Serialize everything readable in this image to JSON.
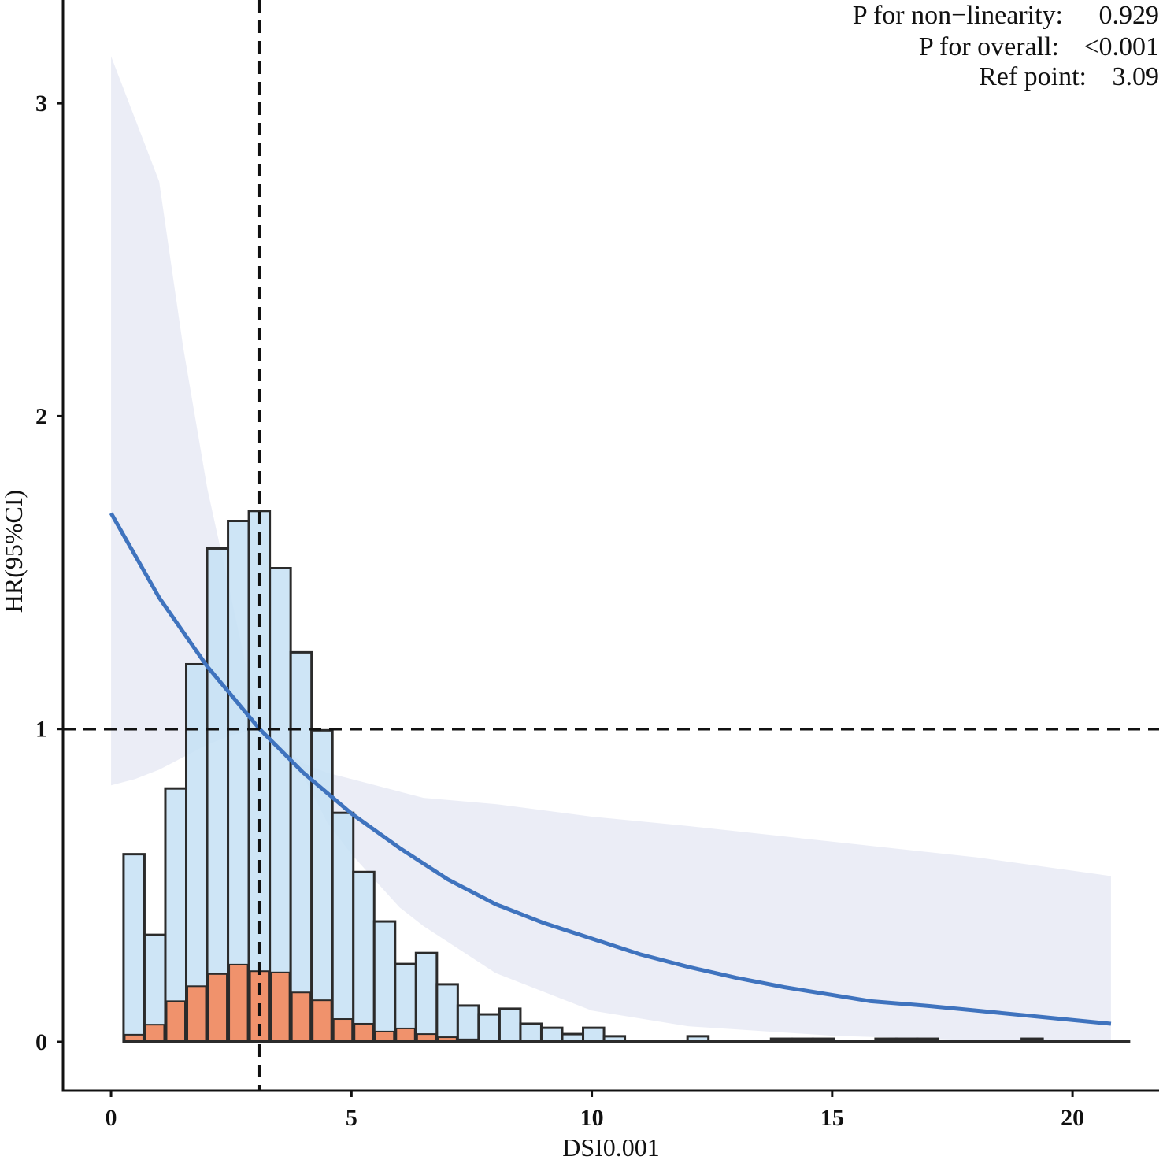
{
  "chart_data": {
    "type": "line",
    "title": "",
    "xlabel": "DSI0.001",
    "ylabel": "HR(95%CI)",
    "xlim": [
      -1.0,
      21.8
    ],
    "ylim": [
      -0.156,
      3.33
    ],
    "xticks": [
      0,
      5,
      10,
      15,
      20
    ],
    "yticks": [
      0,
      1,
      2,
      3
    ],
    "grid": false,
    "annotations": [
      {
        "label": "P for non−linearity:",
        "value": "0.929"
      },
      {
        "label": "P for overall:",
        "value": "<0.001"
      },
      {
        "label": "Ref point:",
        "value": "3.09"
      }
    ],
    "ref_x": 3.09,
    "ref_y": 1,
    "curve": {
      "name": "HR",
      "x": [
        0,
        1,
        2,
        3.09,
        4,
        5,
        6,
        7,
        8,
        9,
        10,
        11,
        12,
        13,
        14,
        15,
        15.8,
        17,
        18,
        19,
        20,
        20.8
      ],
      "y": [
        1.69,
        1.42,
        1.2,
        1.0,
        0.86,
        0.73,
        0.62,
        0.52,
        0.44,
        0.38,
        0.33,
        0.28,
        0.24,
        0.205,
        0.175,
        0.15,
        0.13,
        0.115,
        0.1,
        0.085,
        0.07,
        0.058
      ],
      "color": "#3f73be"
    },
    "ci": {
      "x": [
        0,
        0.5,
        1,
        1.5,
        2,
        2.5,
        3.09,
        4,
        4.5,
        5,
        6,
        6.5,
        8,
        10,
        12,
        15,
        18,
        20.8
      ],
      "upper": [
        3.15,
        2.95,
        2.75,
        2.22,
        1.77,
        1.42,
        1.0,
        0.89,
        0.86,
        0.84,
        0.8,
        0.78,
        0.76,
        0.72,
        0.69,
        0.64,
        0.59,
        0.53
      ],
      "lower": [
        0.82,
        0.84,
        0.87,
        0.91,
        0.95,
        0.98,
        1.0,
        0.85,
        0.7,
        0.6,
        0.43,
        0.37,
        0.22,
        0.1,
        0.05,
        0.02,
        0.005,
        0.0
      ],
      "color": "#e7eaf5"
    },
    "histogram": {
      "bin_start": 0.26,
      "bin_width": 0.4345,
      "axis_end": 21.2,
      "total": [
        0.6,
        0.342,
        0.81,
        1.207,
        1.577,
        1.665,
        1.697,
        1.514,
        1.245,
        0.996,
        0.732,
        0.543,
        0.385,
        0.249,
        0.284,
        0.184,
        0.116,
        0.088,
        0.106,
        0.058,
        0.045,
        0.025,
        0.045,
        0.018,
        0.003,
        0.003,
        0.003,
        0.018,
        0.003,
        0.003,
        0.003,
        0.01,
        0.01,
        0.01,
        0.003,
        0.003,
        0.01,
        0.01,
        0.01,
        0.003,
        0.003,
        0.003,
        0.003,
        0.01
      ],
      "events": [
        0.023,
        0.055,
        0.13,
        0.178,
        0.217,
        0.247,
        0.226,
        0.222,
        0.158,
        0.133,
        0.073,
        0.058,
        0.033,
        0.043,
        0.025,
        0.015,
        0.008,
        0.005,
        0.004,
        0.002,
        0,
        0,
        0,
        0,
        0,
        0,
        0,
        0,
        0,
        0,
        0,
        0,
        0,
        0,
        0,
        0,
        0,
        0,
        0,
        0,
        0,
        0,
        0,
        0
      ],
      "total_color": "#c5e0f4",
      "events_color": "#f0926c"
    }
  }
}
